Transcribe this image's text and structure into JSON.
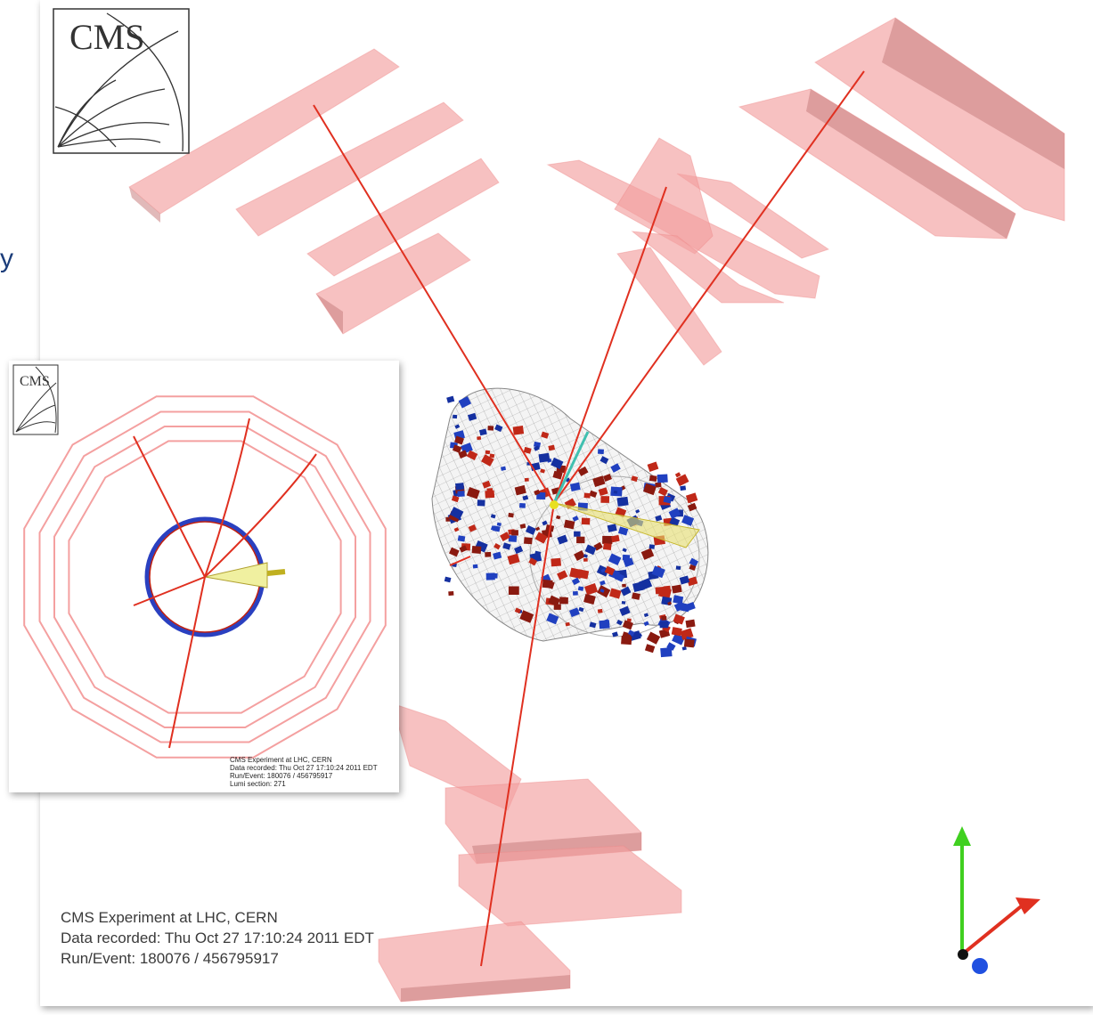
{
  "main_logo": "CMS",
  "inset_logo": "CMS",
  "partial_label": "y",
  "main_caption": [
    "CMS Experiment at LHC, CERN",
    "Data recorded: Thu Oct 27 17:10:24 2011 EDT",
    "Run/Event: 180076 / 456795917"
  ],
  "inset_caption": [
    "CMS Experiment at LHC, CERN",
    "Data recorded: Thu Oct 27 17:10:24 2011 EDT",
    "Run/Event: 180076 / 456795917",
    "Lumi section: 271"
  ]
}
